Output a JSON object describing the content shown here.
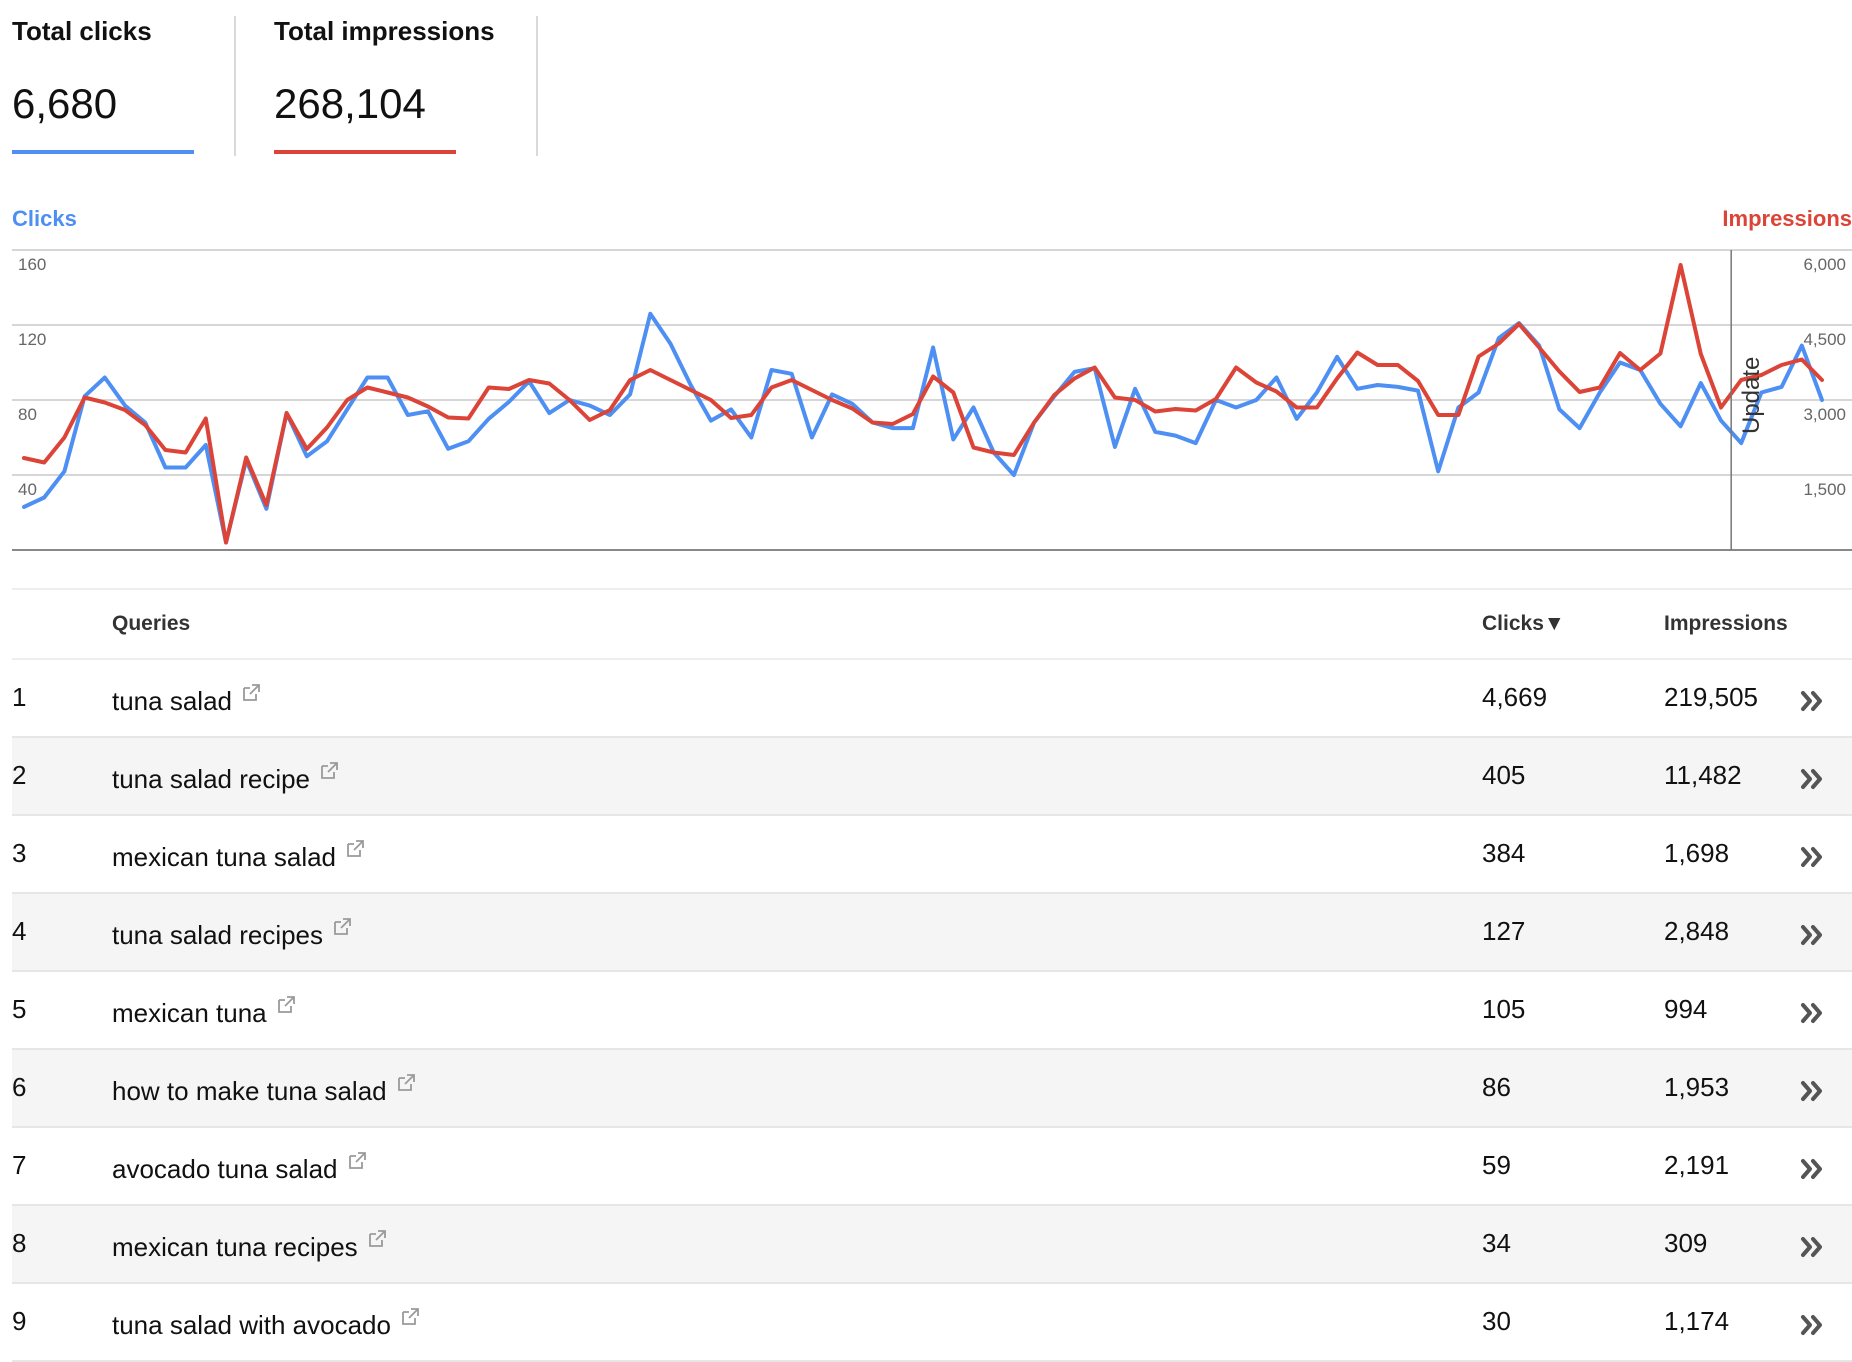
{
  "summary": {
    "clicks": {
      "label": "Total clicks",
      "value": "6,680",
      "color": "#4d8ff2"
    },
    "impressions": {
      "label": "Total impressions",
      "value": "268,104",
      "color": "#db4437"
    }
  },
  "chart_data": {
    "type": "line",
    "left_axis_title": "Clicks",
    "right_axis_title": "Impressions",
    "left_ticks": [
      "160",
      "120",
      "80",
      "40"
    ],
    "right_ticks": [
      "6,000",
      "4,500",
      "3,000",
      "1,500"
    ],
    "left_range": [
      0,
      160
    ],
    "right_range": [
      0,
      6000
    ],
    "grid": true,
    "annotation": {
      "label": "Update",
      "at_index": 85
    },
    "series": [
      {
        "name": "Clicks",
        "axis": "left",
        "color": "#4d8ff2",
        "values": [
          23,
          28,
          42,
          82,
          92,
          77,
          68,
          44,
          44,
          56,
          4,
          48,
          22,
          73,
          50,
          58,
          75,
          92,
          92,
          72,
          74,
          54,
          58,
          70,
          79,
          90,
          73,
          80,
          77,
          72,
          83,
          126,
          110,
          88,
          69,
          75,
          60,
          96,
          94,
          60,
          83,
          78,
          68,
          65,
          65,
          108,
          59,
          76,
          52,
          40,
          68,
          82,
          95,
          97,
          55,
          86,
          63,
          61,
          57,
          80,
          76,
          80,
          92,
          70,
          84,
          103,
          86,
          88,
          87,
          85,
          42,
          76,
          84,
          113,
          121,
          109,
          75,
          65,
          84,
          100,
          96,
          78,
          66,
          89,
          69,
          57,
          84,
          87,
          109,
          80
        ]
      },
      {
        "name": "Impressions",
        "axis": "right",
        "color": "#db4437",
        "values": [
          1840,
          1750,
          2250,
          3050,
          2950,
          2800,
          2500,
          2000,
          1950,
          2630,
          150,
          1850,
          900,
          2740,
          2020,
          2450,
          3000,
          3250,
          3150,
          3050,
          2870,
          2650,
          2630,
          3250,
          3220,
          3400,
          3330,
          3000,
          2600,
          2800,
          3400,
          3600,
          3400,
          3200,
          3000,
          2640,
          2700,
          3250,
          3400,
          3200,
          3000,
          2830,
          2550,
          2520,
          2720,
          3470,
          3150,
          2050,
          1950,
          1900,
          2550,
          3100,
          3430,
          3650,
          3050,
          3000,
          2770,
          2820,
          2790,
          3020,
          3650,
          3350,
          3170,
          2850,
          2850,
          3430,
          3950,
          3700,
          3700,
          3380,
          2700,
          2700,
          3870,
          4130,
          4520,
          4050,
          3570,
          3160,
          3250,
          3940,
          3600,
          3930,
          5700,
          3920,
          2850,
          3400,
          3500,
          3700,
          3810,
          3400
        ]
      }
    ]
  },
  "table": {
    "headers": {
      "queries": "Queries",
      "clicks": "Clicks▼",
      "impressions": "Impressions"
    },
    "rows": [
      {
        "rank": "1",
        "query": "tuna salad",
        "clicks": "4,669",
        "impressions": "219,505"
      },
      {
        "rank": "2",
        "query": "tuna salad recipe",
        "clicks": "405",
        "impressions": "11,482"
      },
      {
        "rank": "3",
        "query": "mexican tuna salad",
        "clicks": "384",
        "impressions": "1,698"
      },
      {
        "rank": "4",
        "query": "tuna salad recipes",
        "clicks": "127",
        "impressions": "2,848"
      },
      {
        "rank": "5",
        "query": "mexican tuna",
        "clicks": "105",
        "impressions": "994"
      },
      {
        "rank": "6",
        "query": "how to make tuna salad",
        "clicks": "86",
        "impressions": "1,953"
      },
      {
        "rank": "7",
        "query": "avocado tuna salad",
        "clicks": "59",
        "impressions": "2,191"
      },
      {
        "rank": "8",
        "query": "mexican tuna recipes",
        "clicks": "34",
        "impressions": "309"
      },
      {
        "rank": "9",
        "query": "tuna salad with avocado",
        "clicks": "30",
        "impressions": "1,174"
      }
    ],
    "icons": {
      "open_in_new": "external-link-icon",
      "row_details": "double-chevron-right-icon"
    }
  }
}
